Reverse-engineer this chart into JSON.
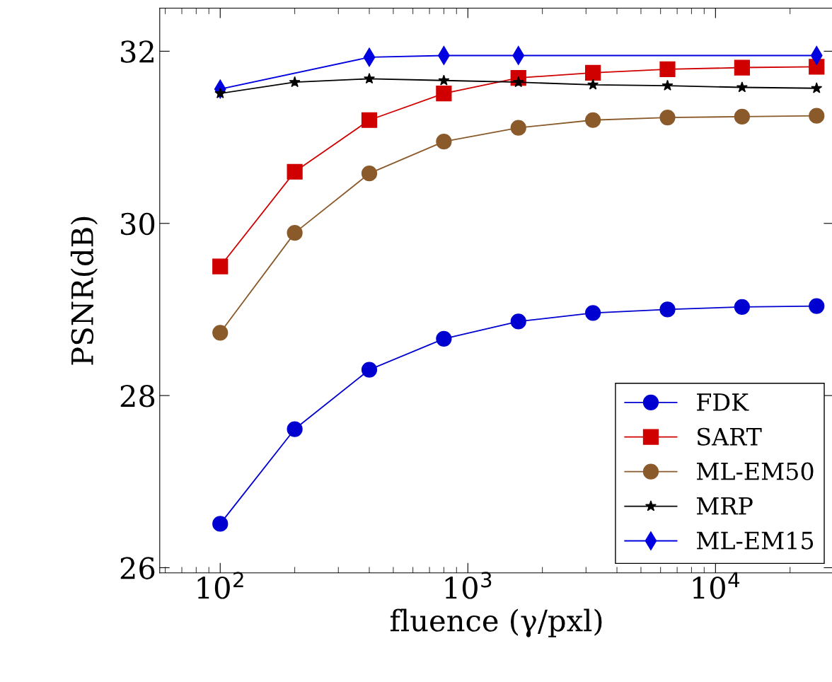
{
  "chart_data": {
    "type": "line",
    "xlabel": "fluence (γ/pxl)",
    "ylabel": "PSNR(dB)",
    "log": "x",
    "x": [
      100,
      200,
      400,
      800,
      1600,
      3200,
      6400,
      12800,
      25600
    ],
    "xlim": [
      57,
      30000
    ],
    "xticks": [
      {
        "value": 100,
        "label": "10$^{2}$"
      },
      {
        "value": 1000,
        "label": "10$^{3}$"
      },
      {
        "value": 10000,
        "label": "10$^{4}$"
      }
    ],
    "ylim": [
      25.94,
      32.5
    ],
    "yticks": [
      26,
      28,
      30,
      32
    ],
    "grid": false,
    "legend": "bottom right",
    "series": [
      {
        "name": "FDK",
        "color": "#0000d0",
        "marker": "circle",
        "values": [
          26.51,
          27.61,
          28.3,
          28.66,
          28.86,
          28.96,
          29.0,
          29.03,
          29.04
        ]
      },
      {
        "name": "SART",
        "color": "#d00000",
        "marker": "square",
        "values": [
          29.5,
          30.6,
          31.2,
          31.51,
          31.69,
          31.75,
          31.79,
          31.81,
          31.82
        ]
      },
      {
        "name": "ML-EM50",
        "color": "#8b5a2b",
        "marker": "circle",
        "values": [
          28.73,
          29.89,
          30.58,
          30.95,
          31.11,
          31.2,
          31.23,
          31.24,
          31.25
        ]
      },
      {
        "name": "MRP",
        "color": "#000000",
        "marker": "star",
        "values": [
          31.51,
          31.64,
          31.68,
          31.66,
          31.64,
          31.61,
          31.6,
          31.58,
          31.57
        ]
      },
      {
        "name": "ML-EM15",
        "color": "#0000e0",
        "marker": "diamond",
        "x": [
          100,
          400,
          800,
          1600,
          25600
        ],
        "values": [
          31.56,
          31.93,
          31.95,
          31.95,
          31.95
        ]
      }
    ]
  }
}
